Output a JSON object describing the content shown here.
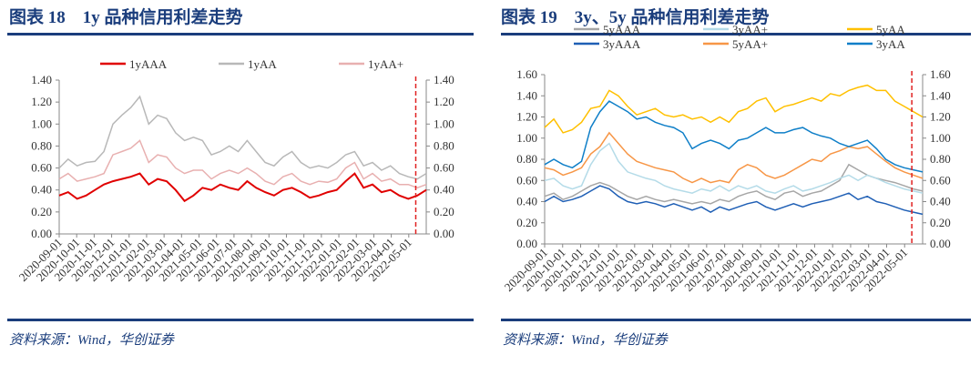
{
  "charts": [
    {
      "title": "图表 18　1y 品种信用利差走势",
      "source": "资料来源：Wind，华创证券"
    },
    {
      "title": "图表 19　3y、5y 品种信用利差走势",
      "source": "资料来源：Wind，华创证券"
    }
  ],
  "chart_data": [
    {
      "type": "line",
      "ylim": [
        0,
        1.4
      ],
      "yticks": [
        "0.00",
        "0.20",
        "0.40",
        "0.60",
        "0.80",
        "1.00",
        "1.20",
        "1.40"
      ],
      "dual_y_axis": true,
      "legend_placement": "top",
      "marker_date": "2022-05-01",
      "marker_color": "#e02020",
      "xtick_labels": [
        "2020-09-01",
        "2020-10-01",
        "2020-11-01",
        "2020-12-01",
        "2021-01-01",
        "2021-02-01",
        "2021-03-01",
        "2021-04-01",
        "2021-05-01",
        "2021-06-01",
        "2021-07-01",
        "2021-08-01",
        "2021-09-01",
        "2021-10-01",
        "2021-11-01",
        "2021-12-01",
        "2022-01-01",
        "2022-02-01",
        "2022-03-01",
        "2022-04-01",
        "2022-05-01"
      ],
      "series": [
        {
          "name": "1yAAA",
          "color": "#e00000",
          "width": 2,
          "values": [
            0.35,
            0.38,
            0.32,
            0.35,
            0.4,
            0.45,
            0.48,
            0.5,
            0.52,
            0.55,
            0.45,
            0.5,
            0.48,
            0.4,
            0.3,
            0.35,
            0.42,
            0.4,
            0.45,
            0.42,
            0.4,
            0.48,
            0.42,
            0.38,
            0.35,
            0.4,
            0.42,
            0.38,
            0.33,
            0.35,
            0.38,
            0.4,
            0.48,
            0.55,
            0.42,
            0.45,
            0.38,
            0.4,
            0.35,
            0.32,
            0.35,
            0.4
          ]
        },
        {
          "name": "1yAA",
          "color": "#b8b8b8",
          "width": 1.5,
          "values": [
            0.6,
            0.68,
            0.62,
            0.65,
            0.66,
            0.75,
            1.0,
            1.08,
            1.15,
            1.25,
            1.0,
            1.08,
            1.05,
            0.92,
            0.85,
            0.88,
            0.85,
            0.72,
            0.75,
            0.8,
            0.75,
            0.85,
            0.75,
            0.65,
            0.62,
            0.7,
            0.75,
            0.65,
            0.6,
            0.62,
            0.6,
            0.65,
            0.72,
            0.75,
            0.62,
            0.65,
            0.58,
            0.62,
            0.55,
            0.52,
            0.5,
            0.55
          ]
        },
        {
          "name": "1yAA+",
          "color": "#e8b0b0",
          "width": 1.5,
          "values": [
            0.5,
            0.55,
            0.48,
            0.5,
            0.52,
            0.55,
            0.72,
            0.75,
            0.78,
            0.85,
            0.65,
            0.72,
            0.7,
            0.6,
            0.55,
            0.58,
            0.58,
            0.5,
            0.55,
            0.58,
            0.55,
            0.6,
            0.55,
            0.48,
            0.45,
            0.52,
            0.55,
            0.48,
            0.45,
            0.48,
            0.47,
            0.5,
            0.6,
            0.65,
            0.5,
            0.55,
            0.48,
            0.5,
            0.45,
            0.45,
            0.42,
            0.45
          ]
        }
      ]
    },
    {
      "type": "line",
      "ylim": [
        0,
        1.6
      ],
      "yticks": [
        "0.00",
        "0.20",
        "0.40",
        "0.60",
        "0.80",
        "1.00",
        "1.20",
        "1.40",
        "1.60"
      ],
      "dual_y_axis": true,
      "legend_placement": "top",
      "marker_date": "2022-05-01",
      "marker_color": "#e02020",
      "xtick_labels": [
        "2020-09-01",
        "2020-10-01",
        "2020-11-01",
        "2020-12-01",
        "2021-01-01",
        "2021-02-01",
        "2021-03-01",
        "2021-04-01",
        "2021-05-01",
        "2021-06-01",
        "2021-07-01",
        "2021-08-01",
        "2021-09-01",
        "2021-10-01",
        "2021-11-01",
        "2021-12-01",
        "2022-01-01",
        "2022-02-01",
        "2022-03-01",
        "2022-04-01",
        "2022-05-01"
      ],
      "series": [
        {
          "name": "5yAAA",
          "color": "#a6a6a6",
          "width": 1.5,
          "values": [
            0.45,
            0.48,
            0.42,
            0.45,
            0.5,
            0.55,
            0.58,
            0.55,
            0.5,
            0.45,
            0.42,
            0.45,
            0.42,
            0.4,
            0.42,
            0.4,
            0.38,
            0.4,
            0.38,
            0.42,
            0.4,
            0.45,
            0.48,
            0.5,
            0.45,
            0.42,
            0.48,
            0.5,
            0.45,
            0.48,
            0.5,
            0.55,
            0.6,
            0.75,
            0.7,
            0.65,
            0.62,
            0.6,
            0.58,
            0.55,
            0.52,
            0.5
          ]
        },
        {
          "name": "3yAA+",
          "color": "#b4dbe8",
          "width": 1.5,
          "values": [
            0.6,
            0.62,
            0.55,
            0.52,
            0.55,
            0.75,
            0.88,
            0.95,
            0.78,
            0.68,
            0.65,
            0.62,
            0.6,
            0.55,
            0.52,
            0.5,
            0.48,
            0.52,
            0.5,
            0.55,
            0.5,
            0.55,
            0.52,
            0.55,
            0.5,
            0.48,
            0.52,
            0.55,
            0.5,
            0.52,
            0.55,
            0.58,
            0.62,
            0.65,
            0.6,
            0.65,
            0.62,
            0.58,
            0.55,
            0.52,
            0.5,
            0.48
          ]
        },
        {
          "name": "5yAA",
          "color": "#ffc000",
          "width": 1.5,
          "values": [
            1.1,
            1.18,
            1.05,
            1.08,
            1.15,
            1.28,
            1.3,
            1.45,
            1.4,
            1.3,
            1.22,
            1.25,
            1.28,
            1.22,
            1.2,
            1.22,
            1.18,
            1.2,
            1.15,
            1.2,
            1.15,
            1.25,
            1.28,
            1.35,
            1.38,
            1.25,
            1.3,
            1.32,
            1.35,
            1.38,
            1.35,
            1.42,
            1.4,
            1.45,
            1.48,
            1.5,
            1.45,
            1.45,
            1.35,
            1.3,
            1.25,
            1.2
          ]
        },
        {
          "name": "3yAAA",
          "color": "#1f5fb5",
          "width": 1.5,
          "values": [
            0.4,
            0.45,
            0.4,
            0.42,
            0.45,
            0.5,
            0.55,
            0.52,
            0.45,
            0.4,
            0.38,
            0.4,
            0.38,
            0.35,
            0.38,
            0.35,
            0.32,
            0.35,
            0.3,
            0.35,
            0.32,
            0.35,
            0.38,
            0.4,
            0.35,
            0.32,
            0.35,
            0.38,
            0.35,
            0.38,
            0.4,
            0.42,
            0.45,
            0.48,
            0.42,
            0.45,
            0.4,
            0.38,
            0.35,
            0.32,
            0.3,
            0.28
          ]
        },
        {
          "name": "5yAA+",
          "color": "#f79646",
          "width": 1.5,
          "values": [
            0.72,
            0.7,
            0.65,
            0.68,
            0.72,
            0.85,
            0.92,
            1.05,
            0.95,
            0.85,
            0.78,
            0.75,
            0.72,
            0.7,
            0.68,
            0.62,
            0.58,
            0.62,
            0.58,
            0.6,
            0.58,
            0.7,
            0.75,
            0.72,
            0.65,
            0.62,
            0.65,
            0.7,
            0.75,
            0.8,
            0.78,
            0.85,
            0.88,
            0.92,
            0.9,
            0.92,
            0.85,
            0.78,
            0.72,
            0.68,
            0.65,
            0.62
          ]
        },
        {
          "name": "3yAA",
          "color": "#0f7fc8",
          "width": 1.5,
          "values": [
            0.75,
            0.8,
            0.75,
            0.72,
            0.78,
            1.1,
            1.25,
            1.35,
            1.3,
            1.25,
            1.18,
            1.2,
            1.15,
            1.12,
            1.1,
            1.05,
            0.9,
            0.95,
            0.98,
            0.95,
            0.9,
            0.98,
            1.0,
            1.05,
            1.1,
            1.05,
            1.05,
            1.08,
            1.1,
            1.05,
            1.02,
            1.0,
            0.95,
            0.92,
            0.95,
            0.98,
            0.9,
            0.8,
            0.75,
            0.72,
            0.7,
            0.68
          ]
        }
      ]
    }
  ]
}
